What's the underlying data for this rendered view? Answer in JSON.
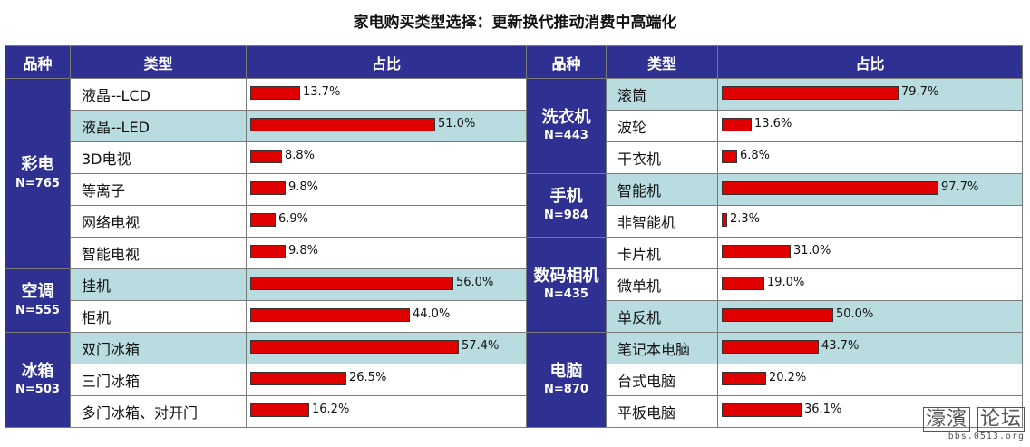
{
  "title": "家电购买类型选择：更新换代推动消费中高端化",
  "headers": {
    "category": "品种",
    "type": "类型",
    "share": "占比"
  },
  "chart_data": {
    "type": "bar",
    "orientation": "horizontal",
    "title": "家电购买类型选择：更新换代推动消费中高端化",
    "unit": "%",
    "xlim": [
      0,
      100
    ],
    "left_panel": [
      {
        "category": "彩电",
        "n": "N=765",
        "items": [
          {
            "label": "液晶--LCD",
            "value": 13.7,
            "text": "13.7%",
            "highlight": false
          },
          {
            "label": "液晶--LED",
            "value": 51.0,
            "text": "51.0%",
            "highlight": true
          },
          {
            "label": "3D电视",
            "value": 8.8,
            "text": "8.8%",
            "highlight": false
          },
          {
            "label": "等离子",
            "value": 9.8,
            "text": "9.8%",
            "highlight": false
          },
          {
            "label": "网络电视",
            "value": 6.9,
            "text": "6.9%",
            "highlight": false
          },
          {
            "label": "智能电视",
            "value": 9.8,
            "text": "9.8%",
            "highlight": false
          }
        ]
      },
      {
        "category": "空调",
        "n": "N=555",
        "items": [
          {
            "label": "挂机",
            "value": 56.0,
            "text": "56.0%",
            "highlight": true
          },
          {
            "label": "柜机",
            "value": 44.0,
            "text": "44.0%",
            "highlight": false
          }
        ]
      },
      {
        "category": "冰箱",
        "n": "N=503",
        "items": [
          {
            "label": "双门冰箱",
            "value": 57.4,
            "text": "57.4%",
            "highlight": true
          },
          {
            "label": "三门冰箱",
            "value": 26.5,
            "text": "26.5%",
            "highlight": false
          },
          {
            "label": "多门冰箱、对开门",
            "value": 16.2,
            "text": "16.2%",
            "highlight": false
          }
        ]
      }
    ],
    "right_panel": [
      {
        "category": "洗衣机",
        "n": "N=443",
        "items": [
          {
            "label": "滚筒",
            "value": 79.7,
            "text": "79.7%",
            "highlight": true
          },
          {
            "label": "波轮",
            "value": 13.6,
            "text": "13.6%",
            "highlight": false
          },
          {
            "label": "干衣机",
            "value": 6.8,
            "text": "6.8%",
            "highlight": false
          }
        ]
      },
      {
        "category": "手机",
        "n": "N=984",
        "items": [
          {
            "label": "智能机",
            "value": 97.7,
            "text": "97.7%",
            "highlight": true
          },
          {
            "label": "非智能机",
            "value": 2.3,
            "text": "2.3%",
            "highlight": false
          }
        ]
      },
      {
        "category": "数码相机",
        "n": "N=435",
        "items": [
          {
            "label": "卡片机",
            "value": 31.0,
            "text": "31.0%",
            "highlight": false
          },
          {
            "label": "微单机",
            "value": 19.0,
            "text": "19.0%",
            "highlight": false
          },
          {
            "label": "单反机",
            "value": 50.0,
            "text": "50.0%",
            "highlight": true
          }
        ]
      },
      {
        "category": "电脑",
        "n": "N=870",
        "items": [
          {
            "label": "笔记本电脑",
            "value": 43.7,
            "text": "43.7%",
            "highlight": true
          },
          {
            "label": "台式电脑",
            "value": 20.2,
            "text": "20.2%",
            "highlight": false
          },
          {
            "label": "平板电脑",
            "value": 36.1,
            "text": "36.1%",
            "highlight": false
          }
        ]
      }
    ]
  },
  "watermark": {
    "line1": "濠濱",
    "line1_boxed": "论坛",
    "line2": "bbs.0513.org"
  },
  "colors": {
    "header": "#2e3192",
    "highlight": "#b8dce0",
    "bar": "#e10000"
  }
}
